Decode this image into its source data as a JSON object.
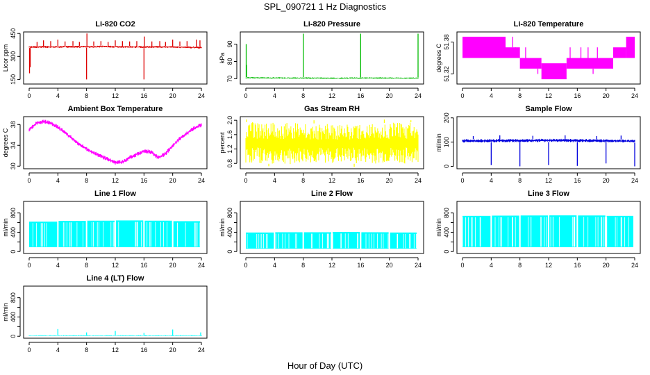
{
  "figure": {
    "title": "SPL_090721  1 Hz Diagnostics",
    "xlabel": "Hour of Day (UTC)"
  },
  "chart_data": [
    {
      "type": "line",
      "title": "Li-820 CO2",
      "ylabel": "Licor ppm",
      "color": "#dd0000",
      "xlim": [
        0,
        24
      ],
      "x_ticks": [
        0,
        4,
        8,
        12,
        16,
        20,
        24
      ],
      "ylim": [
        120,
        460
      ],
      "y_ticks": [
        150,
        300,
        450
      ],
      "y_tick_labels": [
        "150",
        "300",
        "450"
      ],
      "band": {
        "x": [
          0,
          2,
          4,
          6,
          8,
          10,
          12,
          14,
          16,
          18,
          20,
          22,
          24
        ],
        "low": [
          355,
          355,
          356,
          357,
          356,
          358,
          357,
          356,
          355,
          356,
          355,
          354,
          350
        ],
        "high": [
          368,
          369,
          368,
          370,
          369,
          371,
          370,
          369,
          368,
          369,
          368,
          367,
          365
        ]
      },
      "spikes": [
        {
          "x": 0.05,
          "y": 190
        },
        {
          "x": 0.15,
          "y": 230
        },
        {
          "x": 1.1,
          "y": 395
        },
        {
          "x": 2.0,
          "y": 405
        },
        {
          "x": 3.0,
          "y": 400
        },
        {
          "x": 4.0,
          "y": 410
        },
        {
          "x": 5.0,
          "y": 398
        },
        {
          "x": 6.1,
          "y": 400
        },
        {
          "x": 7.0,
          "y": 395
        },
        {
          "x": 8.0,
          "y": 150
        },
        {
          "x": 8.05,
          "y": 450
        },
        {
          "x": 9.0,
          "y": 398
        },
        {
          "x": 10.0,
          "y": 400
        },
        {
          "x": 11.0,
          "y": 395
        },
        {
          "x": 12.0,
          "y": 405
        },
        {
          "x": 13.0,
          "y": 400
        },
        {
          "x": 14.0,
          "y": 398
        },
        {
          "x": 15.0,
          "y": 400
        },
        {
          "x": 16.0,
          "y": 150
        },
        {
          "x": 16.05,
          "y": 430
        },
        {
          "x": 17.1,
          "y": 398
        },
        {
          "x": 18.2,
          "y": 400
        },
        {
          "x": 19.0,
          "y": 395
        },
        {
          "x": 20.0,
          "y": 410
        },
        {
          "x": 21.0,
          "y": 398
        },
        {
          "x": 22.0,
          "y": 400
        },
        {
          "x": 23.3,
          "y": 410
        },
        {
          "x": 23.8,
          "y": 405
        }
      ]
    },
    {
      "type": "line",
      "title": "Li-820 Pressure",
      "ylabel": "kPa",
      "color": "#00bb00",
      "xlim": [
        0,
        24
      ],
      "x_ticks": [
        0,
        4,
        8,
        12,
        16,
        20,
        24
      ],
      "ylim": [
        67,
        97
      ],
      "y_ticks": [
        70,
        80,
        90
      ],
      "y_tick_labels": [
        "70",
        "80",
        "90"
      ],
      "band": {
        "x": [
          0,
          6,
          12,
          18,
          24
        ],
        "low": [
          70.2,
          70.1,
          70.0,
          70.1,
          70.0
        ],
        "high": [
          71.0,
          70.9,
          70.8,
          70.9,
          70.8
        ]
      },
      "spikes": [
        {
          "x": 0.05,
          "y": 90
        },
        {
          "x": 0.1,
          "y": 78
        },
        {
          "x": 8.0,
          "y": 96
        },
        {
          "x": 16.0,
          "y": 96
        },
        {
          "x": 24.0,
          "y": 96
        }
      ]
    },
    {
      "type": "line",
      "title": "Li-820 Temperature",
      "ylabel": "degrees C",
      "color": "#ff00ff",
      "xlim": [
        0,
        24
      ],
      "x_ticks": [
        0,
        4,
        8,
        12,
        16,
        20,
        24
      ],
      "ylim": [
        51.301,
        51.399
      ],
      "y_ticks": [
        51.32,
        51.38
      ],
      "y_tick_labels": [
        "51.32",
        "51.38"
      ],
      "blocks": [
        {
          "x0": 0,
          "x1": 6.0,
          "y0": 51.35,
          "y1": 51.39
        },
        {
          "x0": 6.0,
          "x1": 8.0,
          "y0": 51.35,
          "y1": 51.37
        },
        {
          "x0": 8.0,
          "x1": 11.0,
          "y0": 51.33,
          "y1": 51.35
        },
        {
          "x0": 11.0,
          "x1": 14.5,
          "y0": 51.31,
          "y1": 51.34
        },
        {
          "x0": 14.5,
          "x1": 21.0,
          "y0": 51.33,
          "y1": 51.35
        },
        {
          "x0": 21.0,
          "x1": 22.8,
          "y0": 51.35,
          "y1": 51.37
        },
        {
          "x0": 22.8,
          "x1": 24.0,
          "y0": 51.35,
          "y1": 51.39
        }
      ],
      "spikes": [
        {
          "x": 7.0,
          "y": 51.39
        },
        {
          "x": 7.4,
          "y": 51.37
        },
        {
          "x": 8.8,
          "y": 51.37
        },
        {
          "x": 10.5,
          "y": 51.32
        },
        {
          "x": 15.0,
          "y": 51.37
        },
        {
          "x": 16.5,
          "y": 51.37
        },
        {
          "x": 17.5,
          "y": 51.37
        },
        {
          "x": 18.2,
          "y": 51.32
        },
        {
          "x": 18.8,
          "y": 51.37
        }
      ]
    },
    {
      "type": "line",
      "title": "Ambient Box Temperature",
      "ylabel": "degrees C",
      "color": "#ff00ff",
      "xlim": [
        0,
        24
      ],
      "x_ticks": [
        0,
        4,
        8,
        12,
        16,
        20,
        24
      ],
      "ylim": [
        29.5,
        39.5
      ],
      "y_ticks": [
        30,
        34,
        38
      ],
      "y_tick_labels": [
        "30",
        "34",
        "38"
      ],
      "band": {
        "x": [
          0,
          1,
          2,
          3,
          4,
          5,
          6,
          7,
          8,
          9,
          10,
          11,
          12,
          13,
          14,
          15,
          16,
          17,
          18,
          19,
          20,
          21,
          22,
          23,
          24
        ],
        "low": [
          36.6,
          37.8,
          38.2,
          37.9,
          37.1,
          36.0,
          34.9,
          33.8,
          32.9,
          32.2,
          31.5,
          30.9,
          30.3,
          30.4,
          31.2,
          31.9,
          32.5,
          32.3,
          31.2,
          32.0,
          33.5,
          34.9,
          35.9,
          36.9,
          37.5
        ],
        "high": [
          37.4,
          38.6,
          39.0,
          38.7,
          37.9,
          36.8,
          35.7,
          34.6,
          33.7,
          33.0,
          32.3,
          31.7,
          31.1,
          31.2,
          32.0,
          32.7,
          33.3,
          33.1,
          32.0,
          32.8,
          34.3,
          35.7,
          36.7,
          37.7,
          38.3
        ]
      }
    },
    {
      "type": "line",
      "title": "Gas Stream RH",
      "ylabel": "percent",
      "color": "#ffff00",
      "xlim": [
        0,
        24
      ],
      "x_ticks": [
        0,
        4,
        8,
        12,
        16,
        20,
        24
      ],
      "ylim": [
        0.65,
        2.1
      ],
      "y_ticks": [
        0.8,
        1.2,
        1.6,
        2.0
      ],
      "y_tick_labels": [
        "0.8",
        "1.2",
        "1.6",
        "2.0"
      ],
      "band": {
        "x": [
          0,
          6,
          12,
          18,
          24
        ],
        "low": [
          0.8,
          0.78,
          0.8,
          0.78,
          0.8
        ],
        "high": [
          1.95,
          1.93,
          1.9,
          1.92,
          1.95
        ]
      },
      "spikes": [
        {
          "x": 0.1,
          "y": 2.02
        },
        {
          "x": 3.2,
          "y": 0.72
        },
        {
          "x": 9.5,
          "y": 2.0
        },
        {
          "x": 15.1,
          "y": 0.7
        },
        {
          "x": 19.3,
          "y": 2.02
        },
        {
          "x": 23.0,
          "y": 2.0
        }
      ]
    },
    {
      "type": "line",
      "title": "Sample Flow",
      "ylabel": "ml/min",
      "color": "#0000dd",
      "xlim": [
        0,
        24
      ],
      "x_ticks": [
        0,
        4,
        8,
        12,
        16,
        20,
        24
      ],
      "ylim": [
        -10,
        205
      ],
      "y_ticks": [
        0,
        100,
        200
      ],
      "y_tick_labels": [
        "0",
        "100",
        "200"
      ],
      "band": {
        "x": [
          0,
          6,
          12,
          18,
          24
        ],
        "low": [
          98,
          99,
          100,
          99,
          98
        ],
        "high": [
          112,
          113,
          114,
          113,
          110
        ]
      },
      "spikes": [
        {
          "x": 4.0,
          "y": 5
        },
        {
          "x": 8.0,
          "y": 0
        },
        {
          "x": 12.0,
          "y": 5
        },
        {
          "x": 16.0,
          "y": 2
        },
        {
          "x": 20.0,
          "y": 12
        },
        {
          "x": 24.0,
          "y": 0
        },
        {
          "x": 1.5,
          "y": 125
        },
        {
          "x": 5.2,
          "y": 128
        },
        {
          "x": 9.8,
          "y": 126
        },
        {
          "x": 14.3,
          "y": 128
        },
        {
          "x": 18.7,
          "y": 125
        },
        {
          "x": 22.1,
          "y": 127
        }
      ]
    },
    {
      "type": "area",
      "title": "Line 1 Flow",
      "ylabel": "ml/min",
      "color": "#00ffff",
      "xlim": [
        0,
        24
      ],
      "x_ticks": [
        0,
        4,
        8,
        12,
        16,
        20,
        24
      ],
      "ylim": [
        -40,
        1040
      ],
      "y_ticks": [
        0,
        200,
        400,
        600,
        800
      ],
      "y_tick_labels": [
        "0",
        "",
        "400",
        "",
        "800"
      ],
      "segments": [
        {
          "x0": 0.0,
          "x1": 3.9,
          "low": 90,
          "high": 620
        },
        {
          "x0": 4.1,
          "x1": 7.9,
          "low": 90,
          "high": 635
        },
        {
          "x0": 8.1,
          "x1": 11.9,
          "low": 90,
          "high": 640
        },
        {
          "x0": 12.1,
          "x1": 15.9,
          "low": 90,
          "high": 645
        },
        {
          "x0": 16.1,
          "x1": 19.9,
          "low": 90,
          "high": 640
        },
        {
          "x0": 20.1,
          "x1": 23.8,
          "low": 90,
          "high": 630
        }
      ]
    },
    {
      "type": "area",
      "title": "Line 2 Flow",
      "ylabel": "ml/min",
      "color": "#00ffff",
      "xlim": [
        0,
        24
      ],
      "x_ticks": [
        0,
        4,
        8,
        12,
        16,
        20,
        24
      ],
      "ylim": [
        -40,
        1040
      ],
      "y_ticks": [
        0,
        200,
        400,
        600,
        800
      ],
      "y_tick_labels": [
        "0",
        "",
        "400",
        "",
        "800"
      ],
      "segments": [
        {
          "x0": 0.0,
          "x1": 3.9,
          "low": 60,
          "high": 395
        },
        {
          "x0": 4.1,
          "x1": 7.9,
          "low": 60,
          "high": 400
        },
        {
          "x0": 8.1,
          "x1": 11.9,
          "low": 60,
          "high": 400
        },
        {
          "x0": 12.1,
          "x1": 15.9,
          "low": 60,
          "high": 405
        },
        {
          "x0": 16.1,
          "x1": 19.9,
          "low": 60,
          "high": 400
        },
        {
          "x0": 20.1,
          "x1": 23.8,
          "low": 60,
          "high": 395
        }
      ]
    },
    {
      "type": "area",
      "title": "Line 3 Flow",
      "ylabel": "ml/min",
      "color": "#00ffff",
      "xlim": [
        0,
        24
      ],
      "x_ticks": [
        0,
        4,
        8,
        12,
        16,
        20,
        24
      ],
      "ylim": [
        -40,
        1040
      ],
      "y_ticks": [
        0,
        200,
        400,
        600,
        800
      ],
      "y_tick_labels": [
        "0",
        "",
        "400",
        "",
        "800"
      ],
      "segments": [
        {
          "x0": 0.0,
          "x1": 3.9,
          "low": 90,
          "high": 740
        },
        {
          "x0": 4.1,
          "x1": 7.9,
          "low": 90,
          "high": 745
        },
        {
          "x0": 8.1,
          "x1": 11.9,
          "low": 90,
          "high": 748
        },
        {
          "x0": 12.1,
          "x1": 15.9,
          "low": 90,
          "high": 750
        },
        {
          "x0": 16.1,
          "x1": 19.9,
          "low": 90,
          "high": 748
        },
        {
          "x0": 20.1,
          "x1": 23.8,
          "low": 90,
          "high": 740
        }
      ]
    },
    {
      "type": "line",
      "title": "Line 4 (LT) Flow",
      "ylabel": "ml/min",
      "color": "#00ffff",
      "xlim": [
        0,
        24
      ],
      "x_ticks": [
        0,
        4,
        8,
        12,
        16,
        20,
        24
      ],
      "ylim": [
        -40,
        1040
      ],
      "y_ticks": [
        0,
        200,
        400,
        600,
        800
      ],
      "y_tick_labels": [
        "0",
        "",
        "400",
        "",
        "800"
      ],
      "band": {
        "x": [
          0,
          24
        ],
        "low": [
          5,
          5
        ],
        "high": [
          22,
          22
        ]
      },
      "spikes": [
        {
          "x": 4.0,
          "y": 150
        },
        {
          "x": 8.0,
          "y": 80
        },
        {
          "x": 12.0,
          "y": 110
        },
        {
          "x": 16.0,
          "y": 70
        },
        {
          "x": 20.0,
          "y": 140
        },
        {
          "x": 23.9,
          "y": 80
        }
      ]
    }
  ]
}
